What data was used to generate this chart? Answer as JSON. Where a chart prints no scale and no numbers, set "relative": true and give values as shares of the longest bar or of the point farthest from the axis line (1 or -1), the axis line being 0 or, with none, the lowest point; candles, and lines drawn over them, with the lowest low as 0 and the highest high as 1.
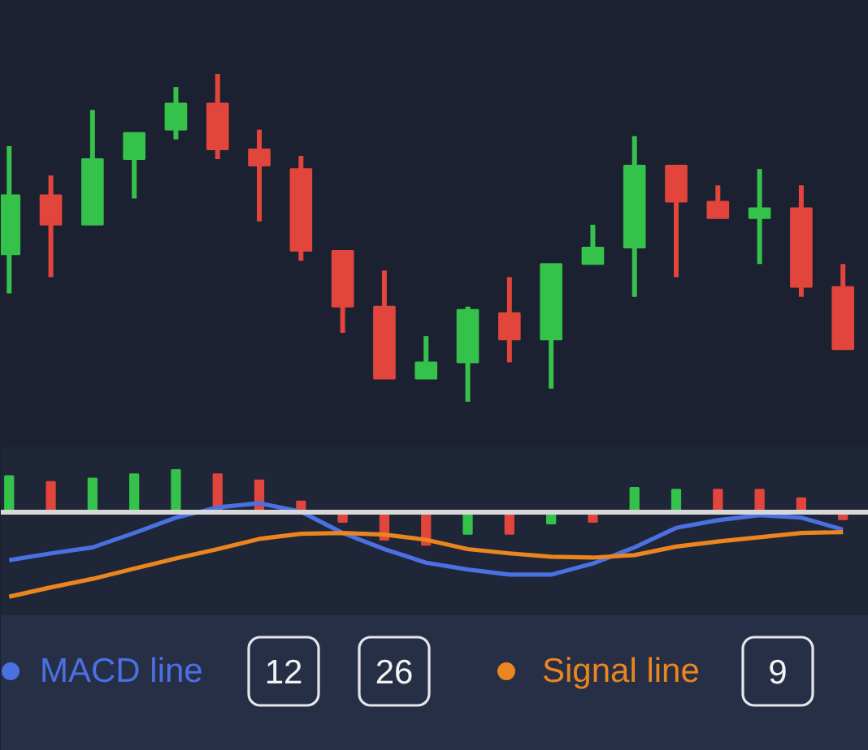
{
  "chart_data": [
    {
      "type": "candlestick",
      "relative": true,
      "categories": [
        null,
        null,
        null,
        null,
        null,
        null,
        null,
        null,
        null,
        null,
        null,
        null,
        null,
        null,
        null,
        null,
        null,
        null,
        null,
        null,
        null
      ],
      "ohlc": [
        [
          0.45,
          0.78,
          0.33,
          0.63
        ],
        [
          0.63,
          0.69,
          0.38,
          0.54
        ],
        [
          0.54,
          0.89,
          0.54,
          0.74
        ],
        [
          0.74,
          0.82,
          0.62,
          0.82
        ],
        [
          0.83,
          0.96,
          0.8,
          0.91
        ],
        [
          0.91,
          1.0,
          0.74,
          0.77
        ],
        [
          0.77,
          0.83,
          0.55,
          0.72
        ],
        [
          0.71,
          0.75,
          0.43,
          0.46
        ],
        [
          0.46,
          0.46,
          0.21,
          0.29
        ],
        [
          0.29,
          0.4,
          0.07,
          0.07
        ],
        [
          0.07,
          0.2,
          0.07,
          0.12
        ],
        [
          0.12,
          0.29,
          0.0,
          0.28
        ],
        [
          0.27,
          0.38,
          0.12,
          0.19
        ],
        [
          0.19,
          0.42,
          0.04,
          0.42
        ],
        [
          0.42,
          0.54,
          0.42,
          0.47
        ],
        [
          0.47,
          0.81,
          0.32,
          0.72
        ],
        [
          0.72,
          0.72,
          0.38,
          0.61
        ],
        [
          0.61,
          0.66,
          0.56,
          0.56
        ],
        [
          0.56,
          0.71,
          0.42,
          0.59
        ],
        [
          0.59,
          0.66,
          0.32,
          0.35
        ],
        [
          0.35,
          0.42,
          0.16,
          0.16
        ]
      ],
      "colors": [
        "#34c24b",
        "#e2453c",
        "#34c24b",
        "#34c24b",
        "#34c24b",
        "#e2453c",
        "#e2453c",
        "#e2453c",
        "#e2453c",
        "#e2453c",
        "#34c24b",
        "#34c24b",
        "#e2453c",
        "#34c24b",
        "#34c24b",
        "#34c24b",
        "#e2453c",
        "#e2453c",
        "#34c24b",
        "#e2453c",
        "#e2453c"
      ]
    },
    {
      "type": "bar",
      "relative": true,
      "categories": [
        null,
        null,
        null,
        null,
        null,
        null,
        null,
        null,
        null,
        null,
        null,
        null,
        null,
        null,
        null,
        null,
        null,
        null,
        null,
        null,
        null
      ],
      "series": [
        {
          "type": "bar",
          "values": [
            0.42,
            0.35,
            0.39,
            0.44,
            0.49,
            0.44,
            0.37,
            0.12,
            -0.12,
            -0.33,
            -0.39,
            -0.26,
            -0.26,
            -0.14,
            -0.12,
            0.28,
            0.26,
            0.26,
            0.26,
            0.16,
            -0.09
          ],
          "colors": [
            "#34c24b",
            "#e2453c",
            "#34c24b",
            "#34c24b",
            "#34c24b",
            "#e2453c",
            "#e2453c",
            "#e2453c",
            "#e2453c",
            "#e2453c",
            "#e2453c",
            "#34c24b",
            "#e2453c",
            "#34c24b",
            "#e2453c",
            "#34c24b",
            "#34c24b",
            "#e2453c",
            "#e2453c",
            "#e2453c",
            "#e2453c"
          ]
        },
        {
          "name": "MACD line",
          "type": "line",
          "color": "#4b70e2",
          "values": [
            -0.57,
            -0.49,
            -0.42,
            -0.25,
            -0.07,
            0.05,
            0.1,
            0.0,
            -0.25,
            -0.44,
            -0.6,
            -0.68,
            -0.74,
            -0.74,
            -0.61,
            -0.42,
            -0.19,
            -0.1,
            -0.04,
            -0.07,
            -0.21
          ]
        },
        {
          "name": "Signal line",
          "type": "line",
          "color": "#ea851f",
          "values": [
            -1.0,
            -0.89,
            -0.79,
            -0.67,
            -0.55,
            -0.44,
            -0.32,
            -0.26,
            -0.25,
            -0.27,
            -0.33,
            -0.44,
            -0.49,
            -0.53,
            -0.54,
            -0.51,
            -0.41,
            -0.35,
            -0.3,
            -0.25,
            -0.24
          ]
        }
      ],
      "legend": "bottom",
      "annotations": [
        "12",
        "26",
        "9"
      ]
    }
  ]
}
